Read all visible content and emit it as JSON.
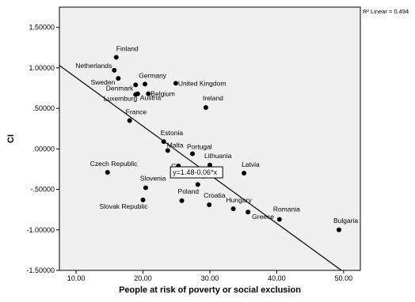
{
  "chart_data": {
    "type": "scatter",
    "xlabel": "People at risk of poverty or social exclusion",
    "ylabel": "CI",
    "xlim": [
      7.5,
      52.5
    ],
    "ylim": [
      -1.5,
      1.75
    ],
    "x_ticks": [
      10,
      20,
      30,
      40,
      50
    ],
    "x_tick_labels": [
      "10.00",
      "20.00",
      "30.00",
      "40.00",
      "50.00"
    ],
    "y_ticks": [
      1.5,
      1.0,
      0.5,
      0.0,
      -0.5,
      -1.0,
      -1.5
    ],
    "y_tick_labels": [
      "1.50000",
      "1.00000",
      ".50000",
      ".00000",
      "-.50000",
      "-1.00000",
      "-1.50000"
    ],
    "grid": false,
    "plot_background": "#f0f0f0",
    "point_color": "#000000",
    "fit_line": {
      "label": "y=1.48-0.06*x",
      "intercept": 1.48,
      "slope": -0.06,
      "r2_label": "R² Linear = 0.494"
    },
    "points": [
      {
        "label": "Finland",
        "x": 16.0,
        "y": 1.13
      },
      {
        "label": "Netherlands",
        "x": 15.7,
        "y": 0.97
      },
      {
        "label": "Sweden",
        "x": 16.3,
        "y": 0.87
      },
      {
        "label": "Denmark",
        "x": 18.9,
        "y": 0.79
      },
      {
        "label": "Germany",
        "x": 20.3,
        "y": 0.8
      },
      {
        "label": "United Kingdom",
        "x": 24.9,
        "y": 0.81
      },
      {
        "label": "Luxemburg",
        "x": 18.9,
        "y": 0.67
      },
      {
        "label": "Austria",
        "x": 19.2,
        "y": 0.68
      },
      {
        "label": "Belgium",
        "x": 20.8,
        "y": 0.68
      },
      {
        "label": "Ireland",
        "x": 29.4,
        "y": 0.51
      },
      {
        "label": "France",
        "x": 18.0,
        "y": 0.35
      },
      {
        "label": "Estonia",
        "x": 23.1,
        "y": 0.09
      },
      {
        "label": "Malta",
        "x": 23.7,
        "y": -0.02
      },
      {
        "label": "Portugal",
        "x": 27.4,
        "y": -0.06
      },
      {
        "label": "Cyprus",
        "x": 25.3,
        "y": -0.21
      },
      {
        "label": "Lithuania",
        "x": 30.0,
        "y": -0.2
      },
      {
        "label": "Latvia",
        "x": 35.1,
        "y": -0.3
      },
      {
        "label": "Czech Republic",
        "x": 14.7,
        "y": -0.29
      },
      {
        "label": "Slovenia",
        "x": 20.4,
        "y": -0.48
      },
      {
        "label": "Italy",
        "x": 28.2,
        "y": -0.44
      },
      {
        "label": "Slovak Republic",
        "x": 20.0,
        "y": -0.63
      },
      {
        "label": "Poland",
        "x": 25.8,
        "y": -0.64
      },
      {
        "label": "Croatia",
        "x": 29.9,
        "y": -0.69
      },
      {
        "label": "Hungary",
        "x": 33.5,
        "y": -0.74
      },
      {
        "label": "Greece",
        "x": 35.7,
        "y": -0.78
      },
      {
        "label": "Romania",
        "x": 40.4,
        "y": -0.87
      },
      {
        "label": "Bulgaria",
        "x": 49.3,
        "y": -1.0
      }
    ],
    "visible_point_labels": {
      "Finland": "Finland",
      "Netherlands": "Netherlands",
      "Sweden": "Sweden",
      "Denmark": "Denmark",
      "Germany": "Germany",
      "United Kingdom": "United Kingdom",
      "Luxemburg": "Luxemburg",
      "Austria": "Austria",
      "Belgium": "Belgium",
      "Ireland": "Ireland",
      "France": "France",
      "Estonia": "Estonia",
      "Malta": "Malta",
      "Portugal": "Portugal",
      "Cyprus": "C",
      "Lithuania": "Lithuania",
      "Latvia": "Latvia",
      "Czech Republic": "Czech Republic",
      "Slovenia": "Slovenia",
      "Italy": "Italy",
      "Slovak Republic": "Slovak Republic",
      "Poland": "Poland",
      "Croatia": "Croatia",
      "Hungary": "Hungary",
      "Greece": "Greece",
      "Romania": "Romania",
      "Bulgaria": "Bulgaria"
    }
  }
}
